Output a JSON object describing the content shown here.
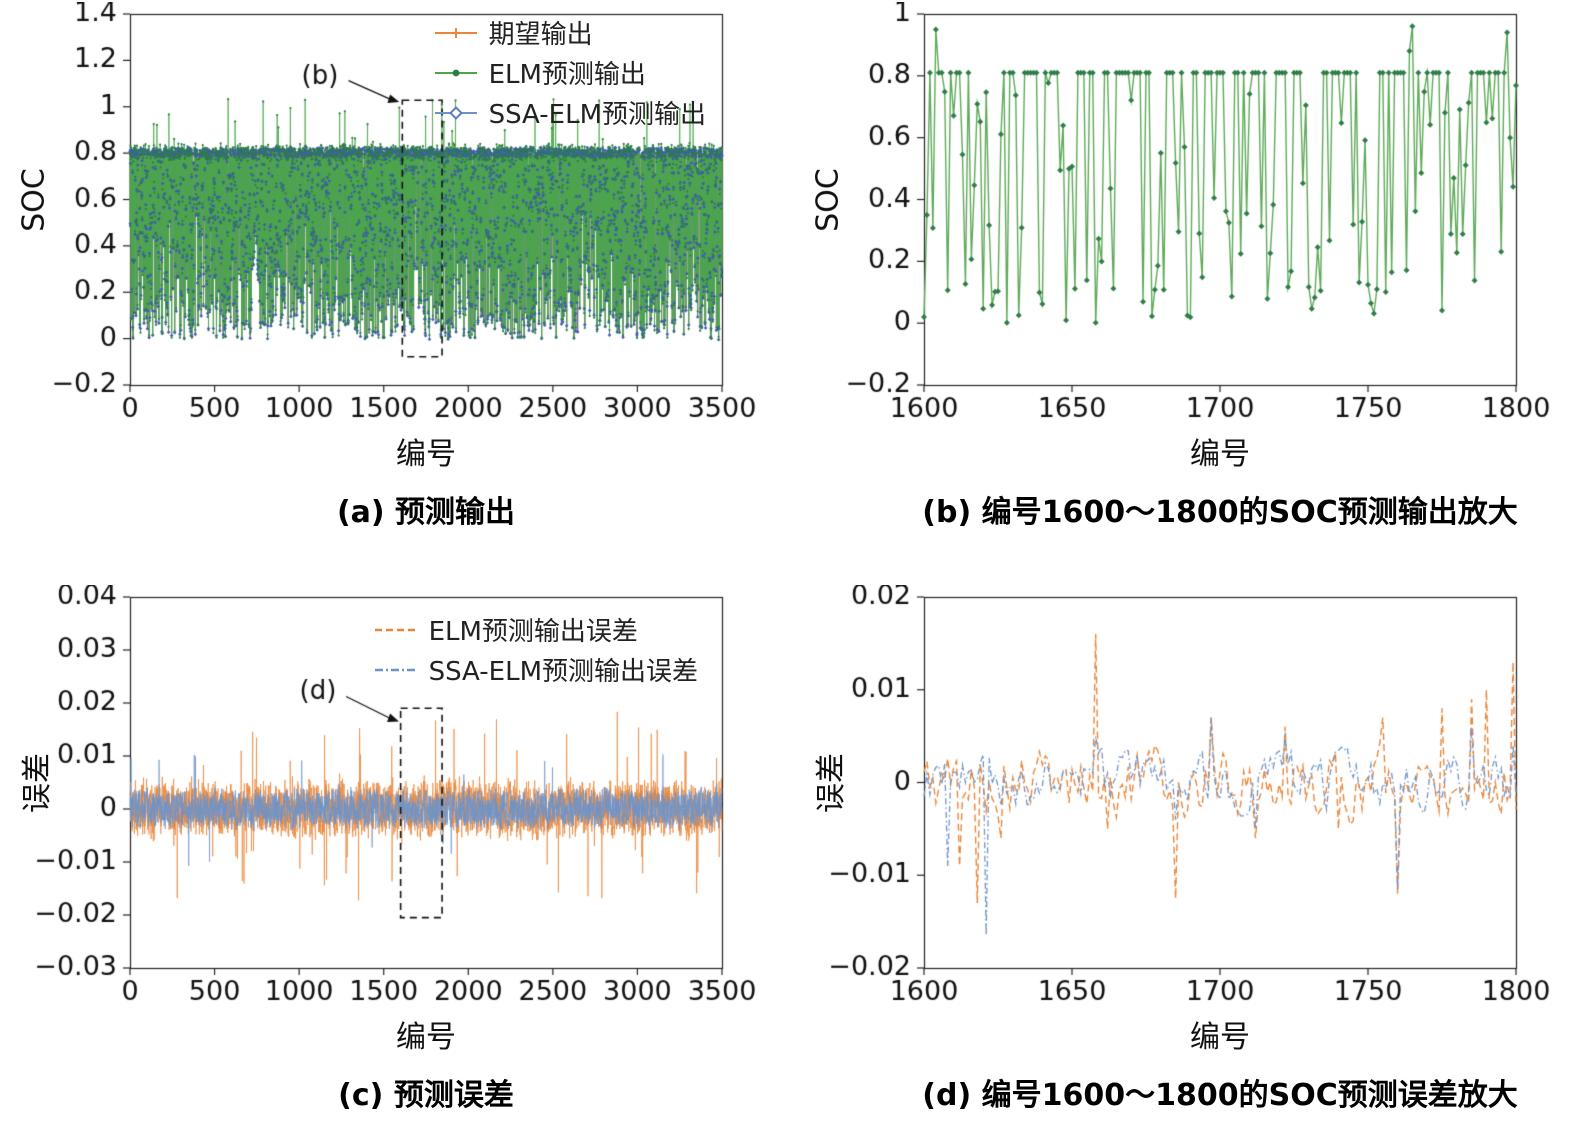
{
  "page": {
    "background": "#ffffff"
  },
  "chart_data": [
    {
      "id": "a",
      "type": "line",
      "caption": "(a) 预测输出",
      "xlabel": "编号",
      "ylabel": "SOC",
      "xlim": [
        0,
        3500
      ],
      "ylim": [
        -0.2,
        1.4
      ],
      "grid": false,
      "legend_position": "upper-right",
      "xticks": [
        0,
        500,
        1000,
        1500,
        2000,
        2500,
        3000,
        3500
      ],
      "xtick_labels": [
        "0",
        "500",
        "1000",
        "1500",
        "2000",
        "2500",
        "3000",
        "3500"
      ],
      "yticks": [
        -0.2,
        0,
        0.2,
        0.4,
        0.6,
        0.8,
        1,
        1.2,
        1.4
      ],
      "ytick_labels": [
        "−0.2",
        "0",
        "0.2",
        "0.4",
        "0.6",
        "0.8",
        "1",
        "1.2",
        "1.4"
      ],
      "legend": [
        {
          "label": "期望输出",
          "color": "#E8873B",
          "marker_color": "#E8873B",
          "style": "solid-plus"
        },
        {
          "label": "ELM预测输出",
          "color": "#4DA64D",
          "marker_color": "#2E7D46",
          "style": "solid-dot"
        },
        {
          "label": "SSA-ELM预测输出",
          "color": "#6E93C8",
          "marker_color": "#5C7FC0",
          "style": "solid-diamond"
        }
      ],
      "series": [
        {
          "name": "期望输出",
          "color": "#E8873B",
          "gen": "soc_base",
          "seed": 101,
          "n": 3500,
          "lw": 0.7
        },
        {
          "name": "SSA-ELM预测输出",
          "color": "#4565B0",
          "gen": "soc_ssa",
          "seed": 101,
          "n": 3500,
          "lw": 0.6,
          "marker": "diamond",
          "marker_size": 1.8,
          "marker_color": "#3D5FAE",
          "markers_on_top": true
        },
        {
          "name": "ELM预测输出",
          "color": "#4DA64D",
          "gen": "soc_elm",
          "seed": 101,
          "n": 3500,
          "lw": 0.8,
          "marker": "dot",
          "marker_size": 1.1,
          "marker_color": "#2E7D46"
        }
      ],
      "annotation": {
        "label": "(b)",
        "box": {
          "x0": 1610,
          "x1": 1845,
          "y0": -0.078,
          "y1": 1.028
        },
        "label_pos": {
          "x": 1123,
          "y": 1.128
        },
        "arrow_to": {
          "x": 1592,
          "y": 1.02
        }
      }
    },
    {
      "id": "b",
      "type": "line",
      "caption": "(b) 编号1600～1800的SOC预测输出放大",
      "xlabel": "编号",
      "ylabel": "SOC",
      "xlim": [
        1600,
        1800
      ],
      "ylim": [
        -0.2,
        1
      ],
      "grid": false,
      "xticks": [
        1600,
        1650,
        1700,
        1750,
        1800
      ],
      "xtick_labels": [
        "1600",
        "1650",
        "1700",
        "1750",
        "1800"
      ],
      "yticks": [
        -0.2,
        0,
        0.2,
        0.4,
        0.6,
        0.8,
        1
      ],
      "ytick_labels": [
        "−0.2",
        "0",
        "0.2",
        "0.4",
        "0.6",
        "0.8",
        "1"
      ],
      "legend": [],
      "series": [
        {
          "name": "ELM预测输出",
          "color": "#5FA95A",
          "gen": "soc_zoom",
          "seed": 23,
          "n": 201,
          "lw": 1.4,
          "marker": "diamond",
          "marker_size": 3,
          "marker_color": "#2F7D46",
          "plateau": 0.81,
          "spikes": {
            "0": 0.02,
            "1": 0.35,
            "4": 0.95,
            "5": 0.81,
            "164": 0.88,
            "165": 0.96,
            "197": 0.94,
            "198": 0.6
          }
        }
      ],
      "annotation": null
    },
    {
      "id": "c",
      "type": "line",
      "caption": "(c) 预测误差",
      "xlabel": "编号",
      "ylabel": "误差",
      "xlim": [
        0,
        3500
      ],
      "ylim": [
        -0.03,
        0.04
      ],
      "grid": false,
      "legend_position": "upper-right",
      "xticks": [
        0,
        500,
        1000,
        1500,
        2000,
        2500,
        3000,
        3500
      ],
      "xtick_labels": [
        "0",
        "500",
        "1000",
        "1500",
        "2000",
        "2500",
        "3000",
        "3500"
      ],
      "yticks": [
        -0.03,
        -0.02,
        -0.01,
        0,
        0.01,
        0.02,
        0.03,
        0.04
      ],
      "ytick_labels": [
        "−0.03",
        "−0.02",
        "−0.01",
        "0",
        "0.01",
        "0.02",
        "0.03",
        "0.04"
      ],
      "legend": [
        {
          "label": "ELM预测输出误差",
          "color": "#E8873B",
          "style": "dashed"
        },
        {
          "label": "SSA-ELM预测输出误差",
          "color": "#6E93C8",
          "style": "dashdot"
        }
      ],
      "series": [
        {
          "name": "ELM预测输出误差",
          "color": "#E8873B",
          "gen": "err",
          "seed": 41,
          "n": 3500,
          "lw": 0.7,
          "amp": 0.009,
          "spike_p": 0.018,
          "spike_amp": 0.019
        },
        {
          "name": "SSA-ELM预测输出误差",
          "color": "#6E93C8",
          "gen": "err",
          "seed": 97,
          "n": 3500,
          "lw": 0.7,
          "amp": 0.006,
          "spike_p": 0.01,
          "spike_amp": 0.011
        }
      ],
      "annotation": {
        "label": "(d)",
        "box": {
          "x0": 1600,
          "x1": 1845,
          "y0": -0.0205,
          "y1": 0.019
        },
        "label_pos": {
          "x": 1111,
          "y": 0.022
        },
        "arrow_to": {
          "x": 1590,
          "y": 0.0165
        }
      }
    },
    {
      "id": "d",
      "type": "line",
      "caption": "(d) 编号1600～1800的SOC预测误差放大",
      "xlabel": "编号",
      "ylabel": "误差",
      "xlim": [
        1600,
        1800
      ],
      "ylim": [
        -0.02,
        0.02
      ],
      "grid": false,
      "xticks": [
        1600,
        1650,
        1700,
        1750,
        1800
      ],
      "xtick_labels": [
        "1600",
        "1650",
        "1700",
        "1750",
        "1800"
      ],
      "yticks": [
        -0.02,
        -0.01,
        0,
        0.01,
        0.02
      ],
      "ytick_labels": [
        "−0.02",
        "−0.01",
        "0",
        "0.01",
        "0.02"
      ],
      "legend": [],
      "series": [
        {
          "name": "ELM预测输出误差",
          "color": "#E8873B",
          "gen": "err_zoom",
          "seed": 5,
          "n": 201,
          "lw": 1.4,
          "amp": 0.006,
          "dash": [
            7,
            4
          ],
          "spikes": {
            "12": -0.009,
            "18": -0.013,
            "26": -0.006,
            "58": 0.016,
            "62": -0.005,
            "85": -0.0125,
            "97": 0.007,
            "112": -0.006,
            "122": 0.006,
            "140": -0.005,
            "155": 0.007,
            "160": -0.012,
            "175": 0.008,
            "185": 0.009,
            "190": 0.01,
            "199": 0.013
          }
        },
        {
          "name": "SSA-ELM预测输出误差",
          "color": "#6E93C8",
          "gen": "err_zoom",
          "seed": 9,
          "n": 201,
          "lw": 1.3,
          "amp": 0.005,
          "dash": [
            6,
            3,
            1.5,
            3
          ],
          "spikes": {
            "8": -0.009,
            "21": -0.0165,
            "58": 0.005,
            "85": -0.004,
            "97": 0.007,
            "112": -0.005,
            "122": 0.005,
            "160": -0.0115,
            "185": 0.006,
            "199": 0.004
          }
        }
      ],
      "annotation": null
    }
  ]
}
